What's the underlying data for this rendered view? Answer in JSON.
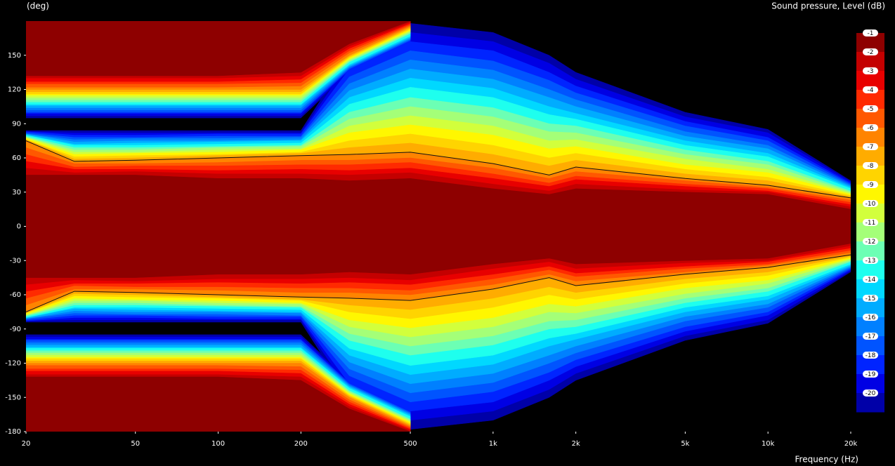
{
  "chart_data": {
    "type": "contour",
    "y_label": "(deg)",
    "x_label": "Frequency (Hz)",
    "colorbar_label": "Sound pressure, Level (dB)",
    "xscale": "log",
    "xlim": [
      20,
      20000
    ],
    "xticks": [
      20,
      50,
      100,
      200,
      500,
      {
        "value": 1000,
        "label": "1k"
      },
      {
        "value": 2000,
        "label": "2k"
      },
      {
        "value": 5000,
        "label": "5k"
      },
      {
        "value": 10000,
        "label": "10k"
      },
      {
        "value": 20000,
        "label": "20k"
      }
    ],
    "ylim": [
      -180,
      180
    ],
    "yticks": [
      -180,
      -150,
      -120,
      -90,
      -60,
      -30,
      0,
      30,
      60,
      90,
      120,
      150
    ],
    "grid": false,
    "background": "#000000",
    "contour_level": -6,
    "x": [
      20,
      30,
      50,
      100,
      200,
      300,
      500,
      1000,
      1600,
      2000,
      5000,
      10000,
      20000
    ],
    "series": [
      {
        "level": -1,
        "color": "#8e0000",
        "values": [
          45,
          45,
          45,
          42,
          42,
          40,
          42,
          33,
          28,
          33,
          30,
          28,
          15
        ],
        "rear_values": [
          48,
          48,
          48,
          48,
          45,
          20,
          0,
          null,
          null,
          null,
          null,
          null,
          null
        ]
      },
      {
        "level": -2,
        "color": "#c40000",
        "values": [
          51,
          47,
          48,
          46,
          46,
          45,
          47,
          37,
          31,
          37,
          32,
          30,
          17
        ],
        "rear_values": [
          50,
          50,
          50,
          50,
          48,
          22,
          1,
          null,
          null,
          null,
          null,
          null,
          null
        ]
      },
      {
        "level": -3,
        "color": "#e80000",
        "values": [
          57,
          50,
          50,
          49,
          50,
          49,
          51,
          42,
          35,
          41,
          35,
          31,
          19
        ],
        "rear_values": [
          53,
          53,
          53,
          53,
          51,
          24,
          2,
          null,
          null,
          null,
          null,
          null,
          null
        ]
      },
      {
        "level": -4,
        "color": "#ff2a00",
        "values": [
          63,
          52,
          53,
          53,
          54,
          54,
          56,
          46,
          38,
          44,
          37,
          33,
          21
        ],
        "rear_values": [
          55,
          55,
          55,
          55,
          54,
          26,
          3,
          null,
          null,
          null,
          null,
          null,
          null
        ]
      },
      {
        "level": -5,
        "color": "#ff5800",
        "values": [
          69,
          55,
          55,
          56,
          58,
          58,
          60,
          51,
          42,
          48,
          40,
          34,
          23
        ],
        "rear_values": [
          58,
          58,
          58,
          58,
          57,
          28,
          4,
          null,
          null,
          null,
          null,
          null,
          null
        ]
      },
      {
        "level": -6,
        "color": "#ff8400",
        "values": [
          75,
          57,
          58,
          60,
          62,
          63,
          65,
          55,
          45,
          52,
          42,
          36,
          25
        ],
        "rear_values": [
          60,
          60,
          60,
          60,
          60,
          30,
          5,
          null,
          null,
          null,
          null,
          null,
          null
        ]
      },
      {
        "level": -7,
        "color": "#ffac00",
        "values": [
          76,
          59,
          60,
          62,
          64,
          69,
          73,
          63,
          53,
          58,
          46,
          40,
          26
        ],
        "rear_values": [
          62,
          62,
          62,
          62,
          62,
          31,
          6,
          null,
          null,
          null,
          null,
          null,
          null
        ]
      },
      {
        "level": -8,
        "color": "#ffd400",
        "values": [
          76,
          61,
          62,
          63,
          65,
          75,
          81,
          71,
          60,
          64,
          50,
          43,
          27
        ],
        "rear_values": [
          64,
          64,
          64,
          64,
          64,
          32,
          7,
          null,
          null,
          null,
          null,
          null,
          null
        ]
      },
      {
        "level": -9,
        "color": "#fff700",
        "values": [
          77,
          63,
          64,
          65,
          67,
          82,
          89,
          80,
          68,
          70,
          54,
          47,
          28
        ],
        "rear_values": [
          65,
          65,
          65,
          65,
          65,
          33,
          8,
          null,
          null,
          null,
          null,
          null,
          null
        ]
      },
      {
        "level": -10,
        "color": "#d2ff3c",
        "values": [
          78,
          65,
          65,
          67,
          68,
          88,
          97,
          88,
          75,
          76,
          59,
          50,
          29
        ],
        "rear_values": [
          67,
          67,
          67,
          67,
          67,
          34,
          9,
          null,
          null,
          null,
          null,
          null,
          null
        ]
      },
      {
        "level": -11,
        "color": "#a4ff78",
        "values": [
          78,
          67,
          67,
          69,
          70,
          94,
          105,
          96,
          83,
          82,
          63,
          54,
          30
        ],
        "rear_values": [
          69,
          69,
          69,
          69,
          69,
          35,
          10,
          null,
          null,
          null,
          null,
          null,
          null
        ]
      },
      {
        "level": -12,
        "color": "#6cffb4",
        "values": [
          79,
          69,
          69,
          70,
          71,
          100,
          113,
          104,
          90,
          88,
          67,
          57,
          31
        ],
        "rear_values": [
          71,
          71,
          71,
          71,
          71,
          36,
          11,
          null,
          null,
          null,
          null,
          null,
          null
        ]
      },
      {
        "level": -13,
        "color": "#1effee",
        "values": [
          80,
          71,
          71,
          72,
          73,
          107,
          122,
          113,
          98,
          94,
          71,
          61,
          33
        ],
        "rear_values": [
          73,
          73,
          73,
          73,
          73,
          38,
          13,
          null,
          null,
          null,
          null,
          null,
          null
        ]
      },
      {
        "level": -14,
        "color": "#00d8ff",
        "values": [
          80,
          72,
          73,
          74,
          75,
          113,
          130,
          121,
          105,
          99,
          75,
          64,
          34
        ],
        "rear_values": [
          74,
          74,
          74,
          74,
          74,
          39,
          14,
          null,
          null,
          null,
          null,
          null,
          null
        ]
      },
      {
        "level": -15,
        "color": "#00acff",
        "values": [
          81,
          74,
          75,
          75,
          76,
          119,
          138,
          129,
          113,
          105,
          79,
          68,
          35
        ],
        "rear_values": [
          76,
          76,
          76,
          76,
          76,
          40,
          15,
          null,
          null,
          null,
          null,
          null,
          null
        ]
      },
      {
        "level": -16,
        "color": "#0080ff",
        "values": [
          81,
          76,
          77,
          77,
          78,
          125,
          146,
          137,
          120,
          111,
          83,
          71,
          36
        ],
        "rear_values": [
          78,
          78,
          78,
          78,
          78,
          41,
          16,
          null,
          null,
          null,
          null,
          null,
          null
        ]
      },
      {
        "level": -17,
        "color": "#0054ff",
        "values": [
          82,
          78,
          78,
          79,
          79,
          131,
          154,
          145,
          128,
          117,
          88,
          75,
          37
        ],
        "rear_values": [
          80,
          80,
          80,
          80,
          80,
          42,
          17,
          null,
          null,
          null,
          null,
          null,
          null
        ]
      },
      {
        "level": -18,
        "color": "#0024ff",
        "values": [
          83,
          80,
          80,
          81,
          81,
          138,
          162,
          154,
          135,
          123,
          92,
          78,
          38
        ],
        "rear_values": [
          81,
          81,
          81,
          81,
          81,
          43,
          18,
          null,
          null,
          null,
          null,
          null,
          null
        ]
      },
      {
        "level": -19,
        "color": "#0000e4",
        "values": [
          83,
          82,
          82,
          82,
          82,
          144,
          170,
          162,
          143,
          129,
          96,
          82,
          39
        ],
        "rear_values": [
          83,
          83,
          83,
          83,
          83,
          44,
          19,
          null,
          null,
          null,
          null,
          null,
          null
        ]
      },
      {
        "level": -20,
        "color": "#0000a8",
        "values": [
          84,
          84,
          84,
          84,
          84,
          150,
          178,
          170,
          150,
          135,
          100,
          85,
          40
        ],
        "rear_values": [
          85,
          85,
          85,
          85,
          85,
          45,
          20,
          null,
          null,
          null,
          null,
          null,
          null
        ]
      }
    ]
  }
}
